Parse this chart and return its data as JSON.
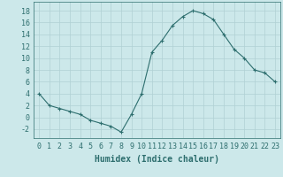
{
  "x": [
    0,
    1,
    2,
    3,
    4,
    5,
    6,
    7,
    8,
    9,
    10,
    11,
    12,
    13,
    14,
    15,
    16,
    17,
    18,
    19,
    20,
    21,
    22,
    23
  ],
  "y": [
    4,
    2,
    1.5,
    1,
    0.5,
    -0.5,
    -1,
    -1.5,
    -2.5,
    0.5,
    4,
    11,
    13,
    15.5,
    17,
    18,
    17.5,
    16.5,
    14,
    11.5,
    10,
    8,
    7.5,
    6
  ],
  "line_color": "#2d6e6e",
  "marker": "+",
  "marker_size": 3,
  "marker_lw": 0.8,
  "bg_color": "#cce8ea",
  "grid_color": "#b0d0d4",
  "xlabel": "Humidex (Indice chaleur)",
  "xlim": [
    -0.5,
    23.5
  ],
  "ylim": [
    -3.5,
    19.5
  ],
  "yticks": [
    -2,
    0,
    2,
    4,
    6,
    8,
    10,
    12,
    14,
    16,
    18
  ],
  "xticks": [
    0,
    1,
    2,
    3,
    4,
    5,
    6,
    7,
    8,
    9,
    10,
    11,
    12,
    13,
    14,
    15,
    16,
    17,
    18,
    19,
    20,
    21,
    22,
    23
  ],
  "tick_color": "#2d6e6e",
  "label_fontsize": 7,
  "tick_fontsize": 6
}
